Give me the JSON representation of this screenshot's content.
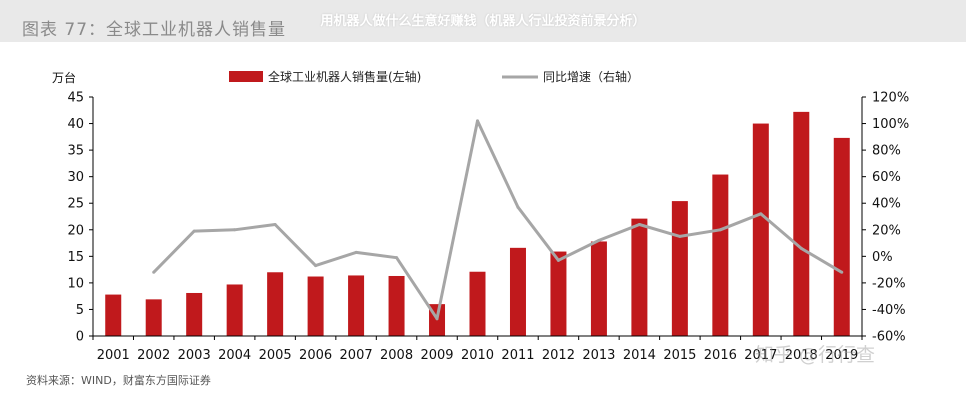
{
  "header": {
    "figure_title": "图表 77：全球工业机器人销售量",
    "overlay_title": "用机器人做什么生意好赚钱（机器人行业投资前景分析）"
  },
  "footer": {
    "source": "资料来源：WIND，财富东方国际证券",
    "watermark": "知乎 @行行查"
  },
  "colors": {
    "bar": "#c0191c",
    "line": "#a6a6a6",
    "axis": "#000000",
    "title_band": "#e9e9e9"
  },
  "chart_data": {
    "type": "bar",
    "categories": [
      "2001",
      "2002",
      "2003",
      "2004",
      "2005",
      "2006",
      "2007",
      "2008",
      "2009",
      "2010",
      "2011",
      "2012",
      "2013",
      "2014",
      "2015",
      "2016",
      "2017",
      "2018",
      "2019"
    ],
    "left_unit": "万台",
    "grid": false,
    "legend_position": "top",
    "series": [
      {
        "name": "全球工业机器人销售量(左轴)",
        "type": "bar",
        "axis": "left",
        "values": [
          7.8,
          6.9,
          8.1,
          9.7,
          12.0,
          11.2,
          11.4,
          11.3,
          6.0,
          12.1,
          16.6,
          15.9,
          17.8,
          22.1,
          25.4,
          30.4,
          40.0,
          42.2,
          37.3
        ]
      },
      {
        "name": "同比增速（右轴）",
        "type": "line",
        "axis": "right",
        "values": [
          null,
          -12,
          19,
          20,
          24,
          -7,
          3,
          -1,
          -47,
          102,
          37,
          -3,
          12,
          24,
          15,
          20,
          32,
          6,
          -12
        ]
      }
    ],
    "left_axis": {
      "min": 0,
      "max": 45,
      "ticks": [
        "0",
        "5",
        "10",
        "15",
        "20",
        "25",
        "30",
        "35",
        "40",
        "45"
      ]
    },
    "right_axis": {
      "min": -60,
      "max": 120,
      "ticks": [
        "-60%",
        "-40%",
        "-20%",
        "0%",
        "20%",
        "40%",
        "60%",
        "80%",
        "100%",
        "120%"
      ]
    }
  }
}
